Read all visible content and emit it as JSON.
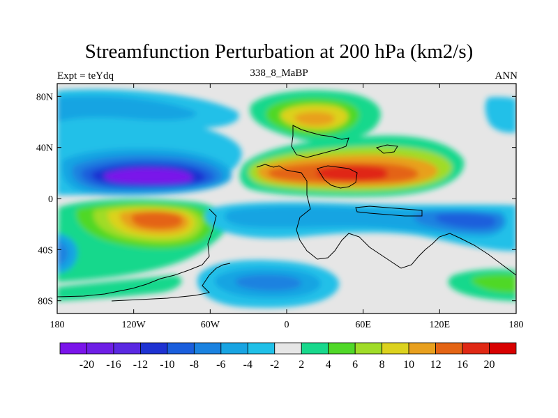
{
  "chart_data": {
    "type": "heatmap",
    "title": "Streamfunction Perturbation at 200 hPa (km2/s)",
    "left_label": "Expt = teYdq",
    "center_label": "338_8_MaBP",
    "right_label": "ANN",
    "x_axis": {
      "range": [
        -180,
        180
      ],
      "ticks": [
        "180",
        "120W",
        "60W",
        "0",
        "60E",
        "120E",
        "180"
      ]
    },
    "y_axis": {
      "range": [
        -90,
        90
      ],
      "ticks": [
        "80N",
        "40N",
        "0",
        "40S",
        "80S"
      ]
    },
    "colorbar": {
      "labels": [
        "-20",
        "-16",
        "-12",
        "-10",
        "-8",
        "-6",
        "-4",
        "-2",
        "2",
        "4",
        "6",
        "8",
        "10",
        "12",
        "16",
        "20"
      ],
      "colors": [
        "#7a14ea",
        "#6e1ee6",
        "#5a28e2",
        "#1e32d2",
        "#1a5edc",
        "#1a82e0",
        "#18a4e2",
        "#20c0e8",
        "#e6e6e6",
        "#18d88c",
        "#50d828",
        "#a0dc28",
        "#dcd21e",
        "#e8a01e",
        "#e46414",
        "#e02814",
        "#d80000"
      ]
    },
    "features": [
      {
        "name": "strong-negative-low",
        "lon": -95,
        "lat": 18,
        "value": -20
      },
      {
        "name": "positive-high-south",
        "lon": -85,
        "lat": -15,
        "value": 16
      },
      {
        "name": "positive-high-asia",
        "lon": 40,
        "lat": 18,
        "value": 16
      },
      {
        "name": "positive-high-north",
        "lon": 25,
        "lat": 60,
        "value": 12
      },
      {
        "name": "negative-southern-belt",
        "lon": 60,
        "lat": -25,
        "value": -8
      },
      {
        "name": "negative-south-atlantic",
        "lon": -20,
        "lat": -65,
        "value": -8
      },
      {
        "name": "negative-north-pacific",
        "lon": -150,
        "lat": 60,
        "value": -6
      },
      {
        "name": "positive-south-pacific",
        "lon": 175,
        "lat": -65,
        "value": 4
      }
    ]
  }
}
